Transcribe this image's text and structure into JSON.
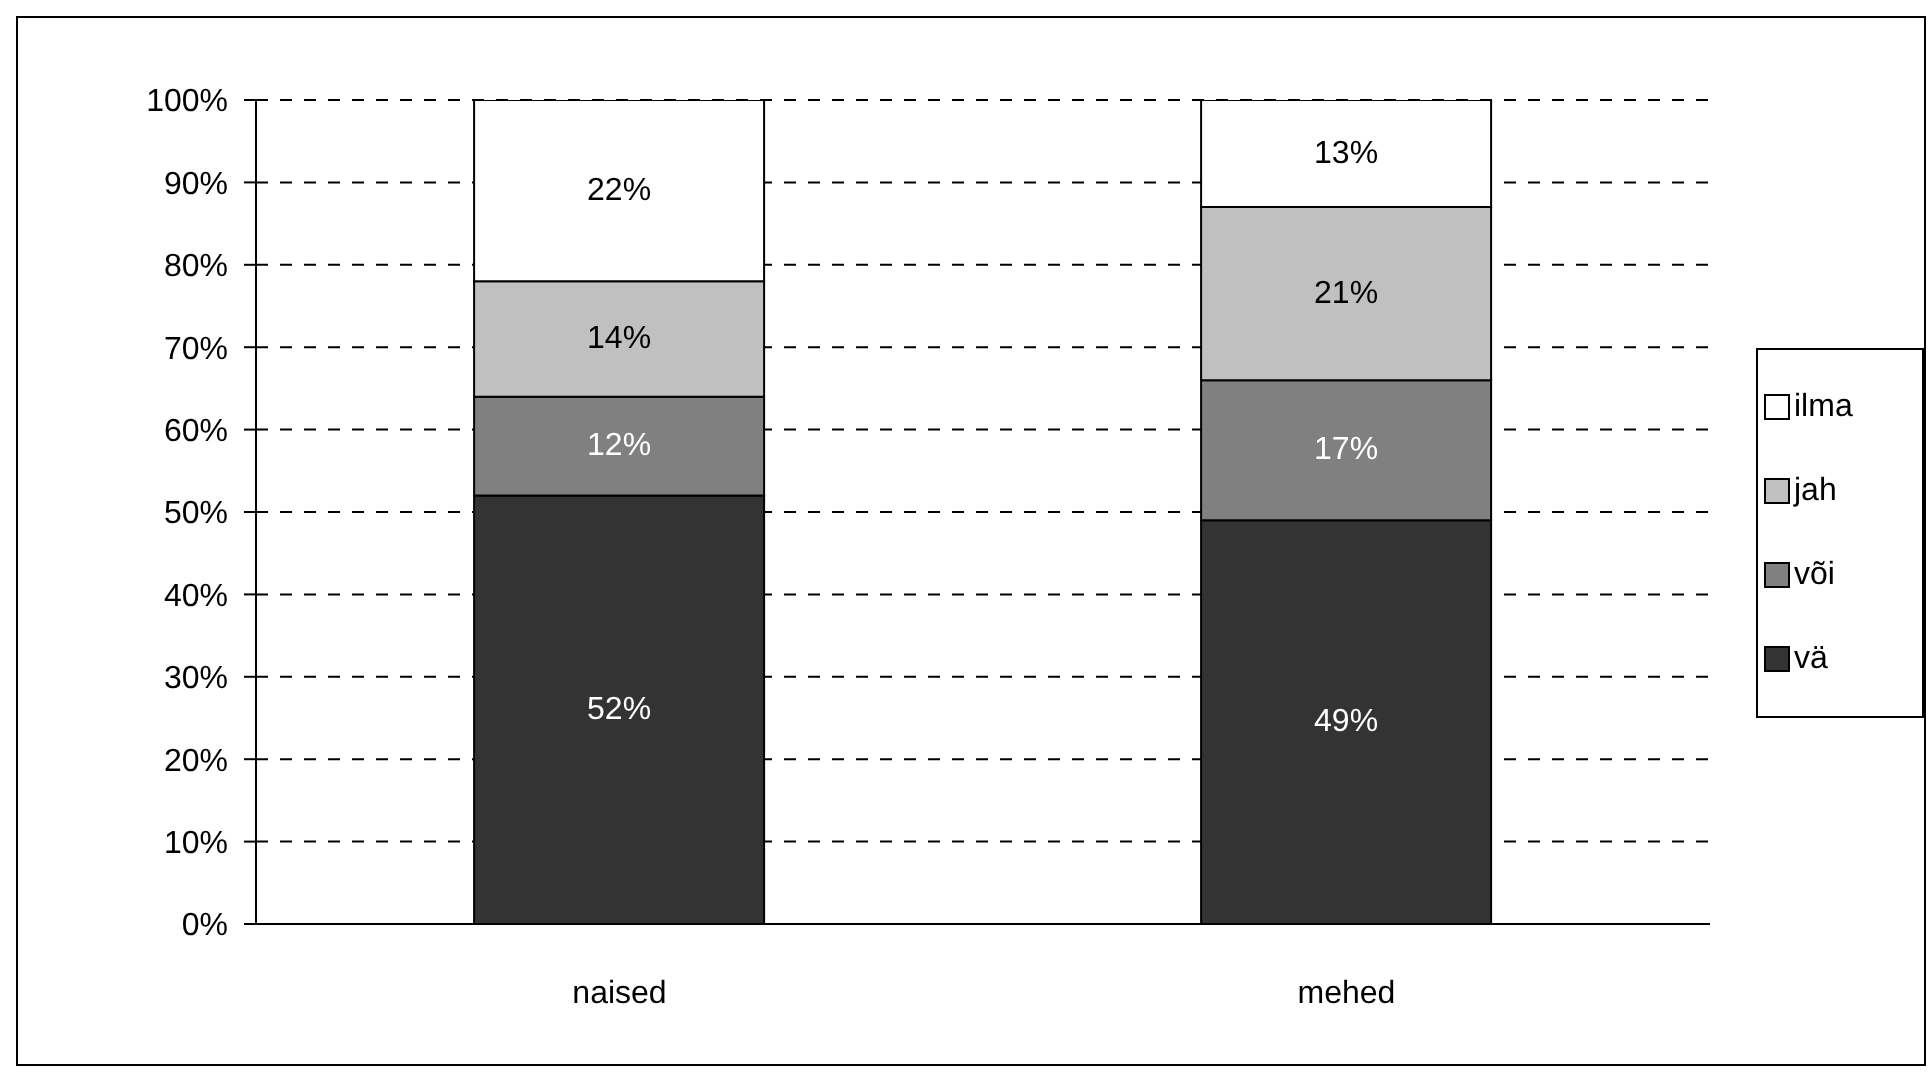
{
  "chart_data": {
    "type": "bar",
    "stacked": true,
    "categories": [
      "naised",
      "mehed"
    ],
    "series": [
      {
        "name": "vä",
        "color": "#333333",
        "values": [
          52,
          49
        ],
        "value_labels": [
          "52%",
          "49%"
        ]
      },
      {
        "name": "või",
        "color": "#808080",
        "values": [
          12,
          17
        ],
        "value_labels": [
          "12%",
          "17%"
        ]
      },
      {
        "name": "jah",
        "color": "#c0c0c0",
        "values": [
          14,
          21
        ],
        "value_labels": [
          "14%",
          "21%"
        ]
      },
      {
        "name": "ilma",
        "color": "#ffffff",
        "values": [
          22,
          13
        ],
        "value_labels": [
          "22%",
          "13%"
        ]
      }
    ],
    "ylim": [
      0,
      100
    ],
    "yticks": [
      {
        "value": 0,
        "label": "0%"
      },
      {
        "value": 10,
        "label": "10%"
      },
      {
        "value": 20,
        "label": "20%"
      },
      {
        "value": 30,
        "label": "30%"
      },
      {
        "value": 40,
        "label": "40%"
      },
      {
        "value": 50,
        "label": "50%"
      },
      {
        "value": 60,
        "label": "60%"
      },
      {
        "value": 70,
        "label": "70%"
      },
      {
        "value": 80,
        "label": "80%"
      },
      {
        "value": 90,
        "label": "90%"
      },
      {
        "value": 100,
        "label": "100%"
      }
    ],
    "grid": "y",
    "legend": "right"
  }
}
